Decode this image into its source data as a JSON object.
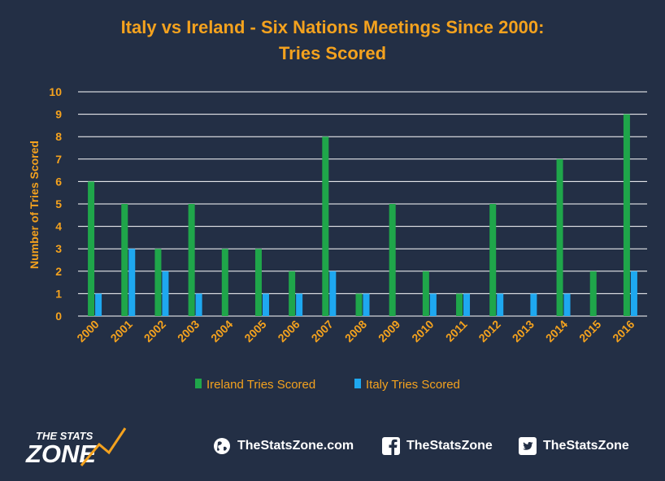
{
  "chart_data": {
    "type": "bar",
    "title_line1": "Italy vs Ireland - Six Nations Meetings Since 2000:",
    "title_line2": "Tries Scored",
    "ylabel": "Number of Tries Scored",
    "xlabel": "",
    "ylim": [
      0,
      10
    ],
    "y_ticks": [
      "0",
      "1",
      "2",
      "3",
      "4",
      "5",
      "6",
      "7",
      "8",
      "9",
      "10"
    ],
    "grid": true,
    "legend_position": "bottom",
    "categories": [
      "2000",
      "2001",
      "2002",
      "2003",
      "2004",
      "2005",
      "2006",
      "2007",
      "2008",
      "2009",
      "2010",
      "2011",
      "2012",
      "2013",
      "2014",
      "2015",
      "2016"
    ],
    "series": [
      {
        "name": "Ireland Tries Scored",
        "color": "#1fa64a",
        "values": [
          6,
          5,
          3,
          5,
          3,
          3,
          2,
          8,
          1,
          5,
          2,
          1,
          5,
          0,
          7,
          2,
          9
        ]
      },
      {
        "name": "Italy Tries Scored",
        "color": "#1ea8f0",
        "values": [
          1,
          3,
          2,
          1,
          0,
          1,
          1,
          2,
          1,
          0,
          1,
          1,
          1,
          1,
          1,
          0,
          2
        ]
      }
    ],
    "colors": {
      "background": "#232f45",
      "text_accent": "#f4a21e",
      "grid": "#ffffff"
    }
  },
  "footer": {
    "logo_top": "THE STATS",
    "logo_bottom": "ZONE",
    "website": "TheStatsZone.com",
    "facebook": "TheStatsZone",
    "twitter": "TheStatsZone",
    "icons": [
      "globe-icon",
      "facebook-icon",
      "twitter-icon"
    ]
  }
}
